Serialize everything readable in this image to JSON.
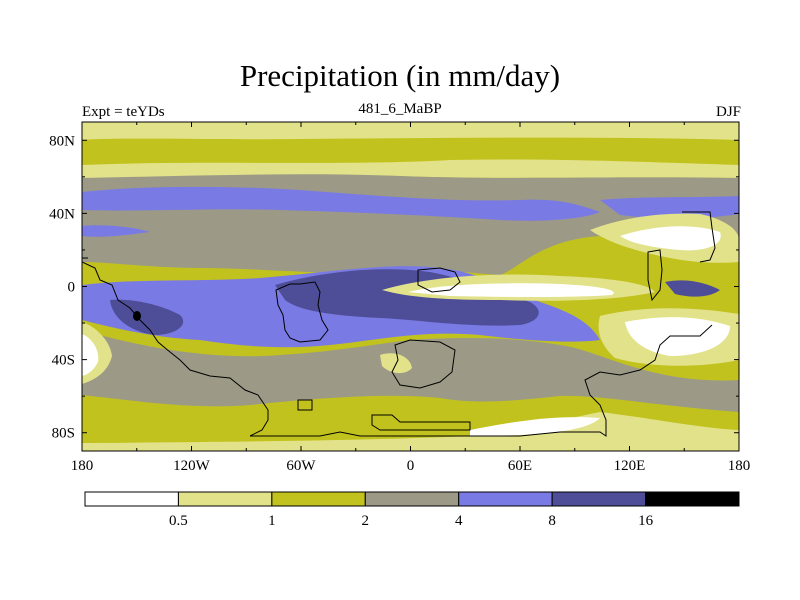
{
  "chart_data": {
    "type": "contour-map",
    "title": "Precipitation (in mm/day)",
    "left_string": "Expt = teYDs",
    "center_string": "481_6_MaBP",
    "right_string": "DJF",
    "x_ticks": [
      "180",
      "120W",
      "60W",
      "0",
      "60E",
      "120E",
      "180"
    ],
    "x_tick_values": [
      -180,
      -120,
      -60,
      0,
      60,
      120,
      180
    ],
    "y_ticks": [
      "80N",
      "40N",
      "0",
      "40S",
      "80S"
    ],
    "y_tick_values": [
      80,
      40,
      0,
      -40,
      -80
    ],
    "xlim": [
      -180,
      180
    ],
    "ylim": [
      -90,
      90
    ],
    "units": "mm/day",
    "levels": [
      0.5,
      1,
      2,
      4,
      8,
      16
    ],
    "level_labels": [
      "0.5",
      "1",
      "2",
      "4",
      "8",
      "16"
    ],
    "colors": [
      "#ffffff",
      "#e2e28a",
      "#c2c21e",
      "#9c9a86",
      "#7a7ae4",
      "#4e4e98",
      "#000000"
    ]
  }
}
